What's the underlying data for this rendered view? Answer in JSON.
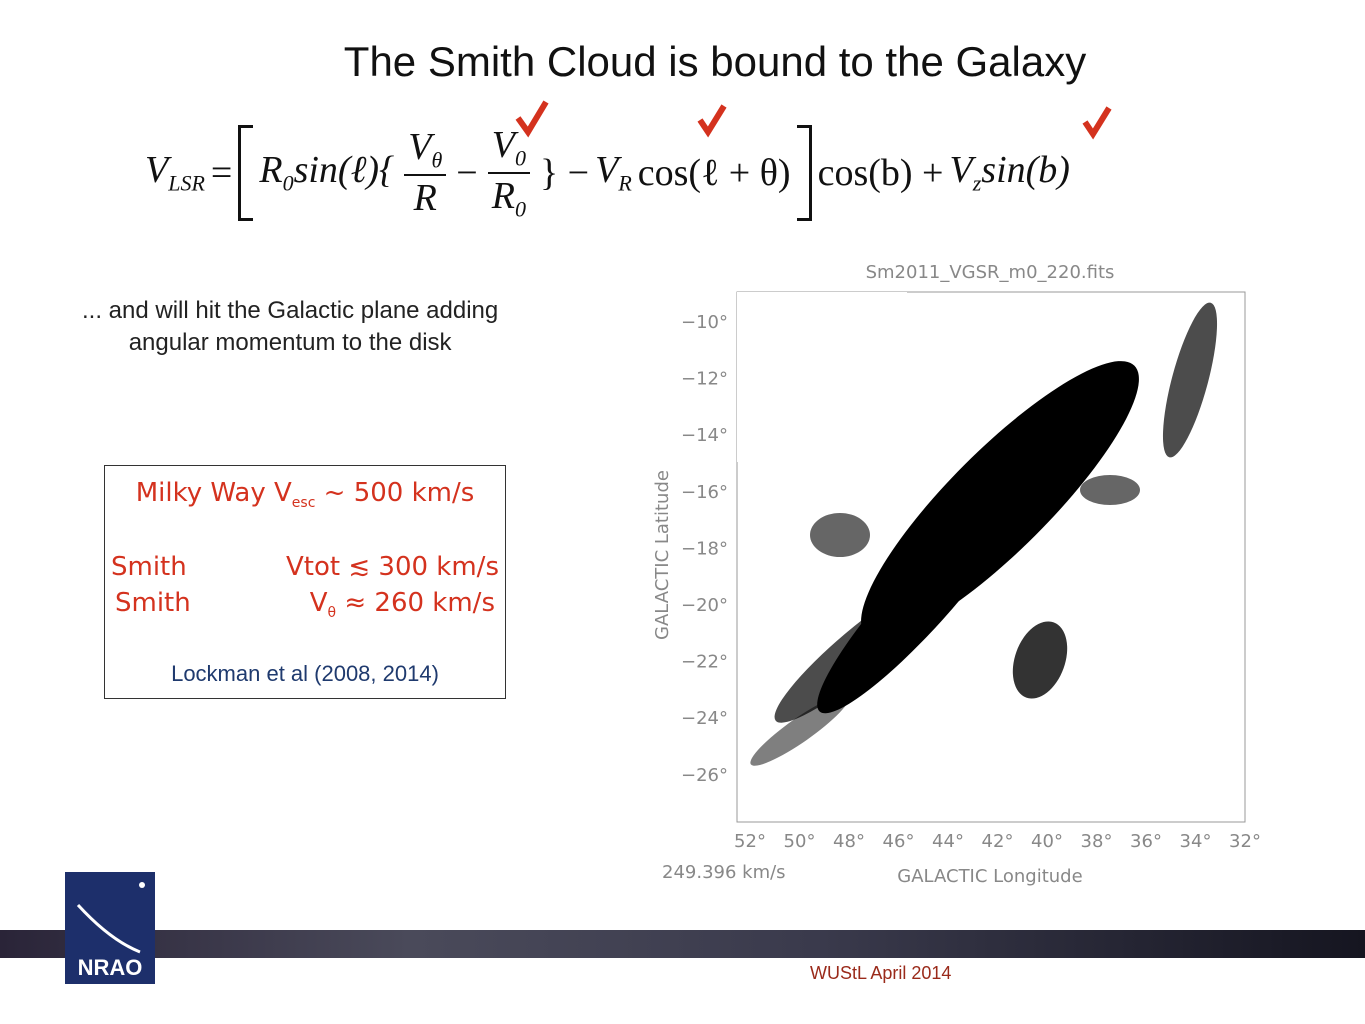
{
  "title": "The Smith Cloud is bound to the Galaxy",
  "equation": {
    "tokens": [
      "V",
      "LSR",
      "=",
      "R",
      "0",
      "sin(ℓ){",
      "V",
      "θ",
      "R",
      "−",
      "V",
      "0",
      "R",
      "0",
      "} −",
      "V",
      "R",
      "cos(ℓ + θ)",
      "cos(b) +",
      "V",
      "z",
      "sin(b)"
    ]
  },
  "text": {
    "lines": [
      "... and will hit the Galactic plane adding",
      "angular momentum to the disk"
    ]
  },
  "box": {
    "line1": [
      "Milky Way  V",
      "esc",
      " ~ 500 km/s"
    ],
    "line2": [
      "Smith",
      "Vtot ≲ 300 km/s"
    ],
    "line3": [
      "Smith",
      "V",
      "θ",
      " ≈ 260 km/s"
    ],
    "citation": "Lockman et al (2008, 2014)"
  },
  "figure": {
    "title": "Sm2011_VGSR_m0_220.fits",
    "lat_labels": [
      "−10°",
      "−12°",
      "−14°",
      "−16°",
      "−18°",
      "−20°",
      "−22°",
      "−24°",
      "−26°"
    ],
    "lon_labels": [
      "52°",
      "50°",
      "48°",
      "46°",
      "44°",
      "42°",
      "40°",
      "38°",
      "36°",
      "34°",
      "32°"
    ],
    "y_label": "GALACTIC Latitude",
    "x_label": "GALACTIC Longitude",
    "velocity": "249.396 km/s"
  },
  "footer": {
    "logo": "NRAO",
    "text": "WUStL April 2014"
  }
}
